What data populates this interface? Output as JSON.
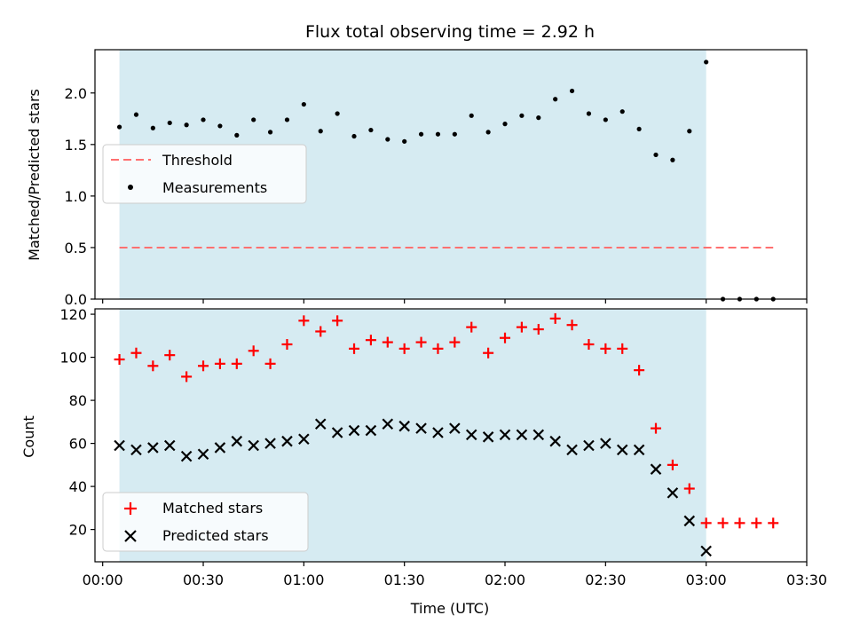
{
  "chart_data": {
    "type": "scatter",
    "title": "Flux total observing time = 2.92 h",
    "xlabel": "Time (UTC)",
    "x_tick_labels": [
      "00:00",
      "00:30",
      "01:00",
      "01:30",
      "02:00",
      "02:30",
      "03:00",
      "03:30"
    ],
    "x_ticks_min": [
      0,
      30,
      60,
      90,
      120,
      150,
      180,
      210
    ],
    "xlim_min": [
      -2.3,
      210
    ],
    "shaded_span_min": [
      5,
      180
    ],
    "shade_color": "#add8e6",
    "top_panel": {
      "ylabel": "Matched/Predicted stars",
      "ylim": [
        0,
        2.42
      ],
      "y_ticks": [
        0.0,
        0.5,
        1.0,
        1.5,
        2.0
      ],
      "y_tick_labels": [
        "0.0",
        "0.5",
        "1.0",
        "1.5",
        "2.0"
      ],
      "threshold": {
        "name": "Threshold",
        "value": 0.5,
        "x_range_min": [
          5,
          200
        ],
        "color": "#ff7070"
      },
      "series": [
        {
          "name": "Measurements",
          "color": "#000000",
          "marker": "dot",
          "x_min": [
            5,
            10,
            15,
            20,
            25,
            30,
            35,
            40,
            45,
            50,
            55,
            60,
            65,
            70,
            75,
            80,
            85,
            90,
            95,
            100,
            105,
            110,
            115,
            120,
            125,
            130,
            135,
            140,
            145,
            150,
            155,
            160,
            165,
            170,
            175,
            180,
            185,
            190,
            195,
            200
          ],
          "y": [
            1.67,
            1.79,
            1.66,
            1.71,
            1.69,
            1.74,
            1.68,
            1.59,
            1.74,
            1.62,
            1.74,
            1.89,
            1.63,
            1.8,
            1.58,
            1.64,
            1.55,
            1.53,
            1.6,
            1.6,
            1.6,
            1.78,
            1.62,
            1.7,
            1.78,
            1.76,
            1.94,
            2.02,
            1.8,
            1.74,
            1.82,
            1.65,
            1.4,
            1.35,
            1.63,
            2.3,
            0,
            0,
            0,
            0
          ]
        }
      ],
      "legend": {
        "position": "center-left",
        "entries": [
          "Threshold",
          "Measurements"
        ]
      }
    },
    "bottom_panel": {
      "ylabel": "Count",
      "ylim": [
        5,
        122.5
      ],
      "y_ticks": [
        20,
        40,
        60,
        80,
        100,
        120
      ],
      "y_tick_labels": [
        "20",
        "40",
        "60",
        "80",
        "100",
        "120"
      ],
      "series": [
        {
          "name": "Matched stars",
          "color": "#ff0000",
          "marker": "plus",
          "x_min": [
            5,
            10,
            15,
            20,
            25,
            30,
            35,
            40,
            45,
            50,
            55,
            60,
            65,
            70,
            75,
            80,
            85,
            90,
            95,
            100,
            105,
            110,
            115,
            120,
            125,
            130,
            135,
            140,
            145,
            150,
            155,
            160,
            165,
            170,
            175,
            180,
            185,
            190,
            195,
            200
          ],
          "y": [
            99,
            102,
            96,
            101,
            91,
            96,
            97,
            97,
            103,
            97,
            106,
            117,
            112,
            117,
            104,
            108,
            107,
            104,
            107,
            104,
            107,
            114,
            102,
            109,
            114,
            113,
            118,
            115,
            106,
            104,
            104,
            94,
            67,
            50,
            39,
            23,
            23,
            23,
            23,
            23
          ]
        },
        {
          "name": "Predicted stars",
          "color": "#000000",
          "marker": "x",
          "x_min": [
            5,
            10,
            15,
            20,
            25,
            30,
            35,
            40,
            45,
            50,
            55,
            60,
            65,
            70,
            75,
            80,
            85,
            90,
            95,
            100,
            105,
            110,
            115,
            120,
            125,
            130,
            135,
            140,
            145,
            150,
            155,
            160,
            165,
            170,
            175,
            180
          ],
          "y": [
            59,
            57,
            58,
            59,
            54,
            55,
            58,
            61,
            59,
            60,
            61,
            62,
            69,
            65,
            66,
            66,
            69,
            68,
            67,
            65,
            67,
            64,
            63,
            64,
            64,
            64,
            61,
            57,
            59,
            60,
            57,
            57,
            48,
            37,
            24,
            10
          ]
        }
      ],
      "legend": {
        "position": "lower-left",
        "entries": [
          "Matched stars",
          "Predicted stars"
        ]
      }
    }
  }
}
